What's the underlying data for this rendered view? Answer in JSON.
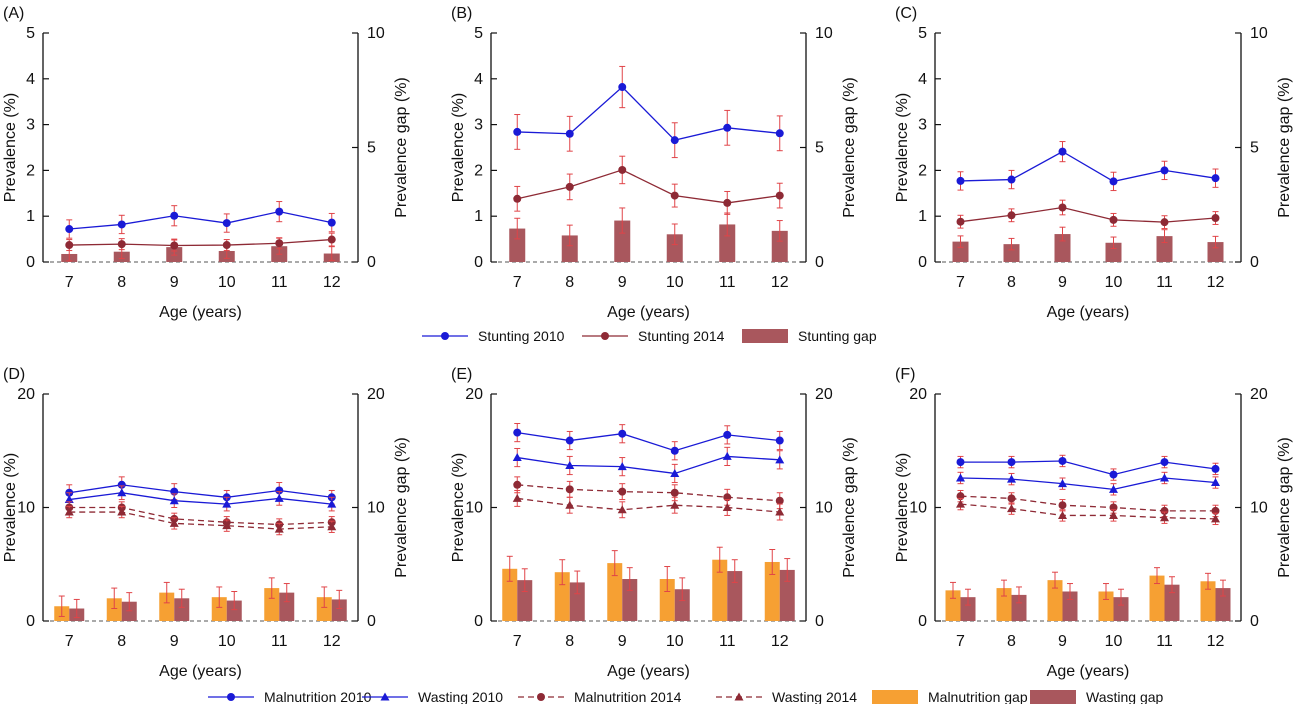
{
  "colors": {
    "blue": "#1a1ad6",
    "red": "#8e2a35",
    "bar_brown": "#a9575d",
    "bar_orange": "#f6a033",
    "err_red": "#e04448",
    "axis": "#111111"
  },
  "chart_data": [
    {
      "panel": "(A)",
      "type": "line+bar",
      "group": "stunting",
      "categories": [
        "7",
        "8",
        "9",
        "10",
        "11",
        "12"
      ],
      "xlabel": "Age (years)",
      "ylabel": "Prevalence (%)",
      "y2label": "Prevalence gap (%)",
      "ylim": [
        0,
        5
      ],
      "yticks": [
        "0",
        "1",
        "2",
        "3",
        "4",
        "5"
      ],
      "y2lim": [
        0,
        10
      ],
      "y2ticks": [
        "0",
        "5",
        "10"
      ],
      "lines": [
        {
          "name": "Stunting 2010",
          "color": "blue",
          "marker": "circle",
          "dash": false,
          "values": [
            0.72,
            0.82,
            1.01,
            0.85,
            1.1,
            0.86
          ],
          "err": [
            0.2,
            0.2,
            0.22,
            0.2,
            0.22,
            0.2
          ]
        },
        {
          "name": "Stunting 2014",
          "color": "red",
          "marker": "circle",
          "dash": false,
          "values": [
            0.37,
            0.39,
            0.36,
            0.37,
            0.41,
            0.49
          ],
          "err": [
            0.12,
            0.12,
            0.12,
            0.12,
            0.12,
            0.14
          ]
        }
      ],
      "bars": [
        {
          "name": "Stunting gap",
          "color": "bar_brown",
          "values": [
            0.35,
            0.45,
            0.65,
            0.48,
            0.69,
            0.37
          ],
          "err": [
            0.3,
            0.3,
            0.35,
            0.32,
            0.35,
            0.3
          ]
        }
      ]
    },
    {
      "panel": "(B)",
      "type": "line+bar",
      "group": "stunting",
      "categories": [
        "7",
        "8",
        "9",
        "10",
        "11",
        "12"
      ],
      "xlabel": "Age (years)",
      "ylabel": "Prevalence (%)",
      "y2label": "Prevalence gap (%)",
      "ylim": [
        0,
        5
      ],
      "yticks": [
        "0",
        "1",
        "2",
        "3",
        "4",
        "5"
      ],
      "y2lim": [
        0,
        10
      ],
      "y2ticks": [
        "0",
        "5",
        "10"
      ],
      "lines": [
        {
          "name": "Stunting 2010",
          "color": "blue",
          "marker": "circle",
          "dash": false,
          "values": [
            2.84,
            2.8,
            3.82,
            2.66,
            2.93,
            2.81
          ],
          "err": [
            0.38,
            0.38,
            0.45,
            0.38,
            0.38,
            0.38
          ]
        },
        {
          "name": "Stunting 2014",
          "color": "red",
          "marker": "circle",
          "dash": false,
          "values": [
            1.38,
            1.64,
            2.01,
            1.45,
            1.29,
            1.45
          ],
          "err": [
            0.27,
            0.28,
            0.3,
            0.25,
            0.25,
            0.27
          ]
        }
      ],
      "bars": [
        {
          "name": "Stunting gap",
          "color": "bar_brown",
          "values": [
            1.46,
            1.16,
            1.81,
            1.21,
            1.64,
            1.36
          ],
          "err": [
            0.45,
            0.45,
            0.55,
            0.45,
            0.5,
            0.45
          ]
        }
      ]
    },
    {
      "panel": "(C)",
      "type": "line+bar",
      "group": "stunting",
      "categories": [
        "7",
        "8",
        "9",
        "10",
        "11",
        "12"
      ],
      "xlabel": "Age (years)",
      "ylabel": "Prevalence (%)",
      "y2label": "Prevalence gap (%)",
      "ylim": [
        0,
        5
      ],
      "yticks": [
        "0",
        "1",
        "2",
        "3",
        "4",
        "5"
      ],
      "y2lim": [
        0,
        10
      ],
      "y2ticks": [
        "0",
        "5",
        "10"
      ],
      "lines": [
        {
          "name": "Stunting 2010",
          "color": "blue",
          "marker": "circle",
          "dash": false,
          "values": [
            1.77,
            1.8,
            2.41,
            1.76,
            2.0,
            1.83
          ],
          "err": [
            0.2,
            0.2,
            0.22,
            0.2,
            0.2,
            0.2
          ]
        },
        {
          "name": "Stunting 2014",
          "color": "red",
          "marker": "circle",
          "dash": false,
          "values": [
            0.88,
            1.02,
            1.19,
            0.92,
            0.87,
            0.96
          ],
          "err": [
            0.14,
            0.14,
            0.16,
            0.14,
            0.14,
            0.14
          ]
        }
      ],
      "bars": [
        {
          "name": "Stunting gap",
          "color": "bar_brown",
          "values": [
            0.89,
            0.78,
            1.22,
            0.84,
            1.13,
            0.87
          ],
          "err": [
            0.25,
            0.25,
            0.3,
            0.25,
            0.28,
            0.25
          ]
        }
      ]
    },
    {
      "panel": "(D)",
      "type": "line+bar",
      "group": "malnutrition",
      "categories": [
        "7",
        "8",
        "9",
        "10",
        "11",
        "12"
      ],
      "xlabel": "Age (years)",
      "ylabel": "Prevalence (%)",
      "y2label": "Prevalence gap (%)",
      "ylim": [
        0,
        20
      ],
      "yticks": [
        "0",
        "10",
        "20"
      ],
      "y2lim": [
        0,
        20
      ],
      "y2ticks": [
        "0",
        "10",
        "20"
      ],
      "lines": [
        {
          "name": "Malnutrition 2010",
          "color": "blue",
          "marker": "circle",
          "dash": false,
          "values": [
            11.3,
            12.0,
            11.4,
            10.9,
            11.5,
            10.9
          ],
          "err": [
            0.7,
            0.7,
            0.7,
            0.6,
            0.7,
            0.6
          ]
        },
        {
          "name": "Wasting 2010",
          "color": "blue",
          "marker": "triangle",
          "dash": false,
          "values": [
            10.7,
            11.3,
            10.6,
            10.3,
            10.8,
            10.3
          ],
          "err": [
            0.6,
            0.6,
            0.6,
            0.6,
            0.6,
            0.6
          ]
        },
        {
          "name": "Malnutrition 2014",
          "color": "red",
          "marker": "circle",
          "dash": true,
          "values": [
            10.0,
            10.0,
            9.0,
            8.7,
            8.5,
            8.7
          ],
          "err": [
            0.5,
            0.5,
            0.5,
            0.5,
            0.5,
            0.5
          ]
        },
        {
          "name": "Wasting 2014",
          "color": "red",
          "marker": "triangle",
          "dash": true,
          "values": [
            9.6,
            9.6,
            8.6,
            8.4,
            8.1,
            8.3
          ],
          "err": [
            0.5,
            0.5,
            0.5,
            0.5,
            0.5,
            0.5
          ]
        }
      ],
      "bars": [
        {
          "name": "Malnutrition gap",
          "color": "bar_orange",
          "values": [
            1.3,
            2.0,
            2.5,
            2.1,
            2.9,
            2.1
          ],
          "err": [
            0.9,
            0.9,
            0.9,
            0.9,
            0.9,
            0.9
          ]
        },
        {
          "name": "Wasting gap",
          "color": "bar_brown",
          "values": [
            1.1,
            1.7,
            2.0,
            1.8,
            2.5,
            1.9
          ],
          "err": [
            0.8,
            0.8,
            0.8,
            0.8,
            0.8,
            0.8
          ]
        }
      ]
    },
    {
      "panel": "(E)",
      "type": "line+bar",
      "group": "malnutrition",
      "categories": [
        "7",
        "8",
        "9",
        "10",
        "11",
        "12"
      ],
      "xlabel": "Age (years)",
      "ylabel": "Prevalence (%)",
      "y2label": "Prevalence gap (%)",
      "ylim": [
        0,
        20
      ],
      "yticks": [
        "0",
        "10",
        "20"
      ],
      "y2lim": [
        0,
        20
      ],
      "y2ticks": [
        "0",
        "10",
        "20"
      ],
      "lines": [
        {
          "name": "Malnutrition 2010",
          "color": "blue",
          "marker": "circle",
          "dash": false,
          "values": [
            16.6,
            15.9,
            16.5,
            15.0,
            16.4,
            15.9
          ],
          "err": [
            0.8,
            0.8,
            0.8,
            0.8,
            0.8,
            0.8
          ]
        },
        {
          "name": "Wasting 2010",
          "color": "blue",
          "marker": "triangle",
          "dash": false,
          "values": [
            14.4,
            13.7,
            13.6,
            13.0,
            14.5,
            14.2
          ],
          "err": [
            0.8,
            0.8,
            0.8,
            0.8,
            0.8,
            0.8
          ]
        },
        {
          "name": "Malnutrition 2014",
          "color": "red",
          "marker": "circle",
          "dash": true,
          "values": [
            12.0,
            11.6,
            11.4,
            11.3,
            10.9,
            10.6
          ],
          "err": [
            0.7,
            0.7,
            0.7,
            0.7,
            0.7,
            0.7
          ]
        },
        {
          "name": "Wasting 2014",
          "color": "red",
          "marker": "triangle",
          "dash": true,
          "values": [
            10.8,
            10.2,
            9.8,
            10.2,
            10.0,
            9.6
          ],
          "err": [
            0.7,
            0.7,
            0.7,
            0.7,
            0.7,
            0.7
          ]
        }
      ],
      "bars": [
        {
          "name": "Malnutrition gap",
          "color": "bar_orange",
          "values": [
            4.6,
            4.3,
            5.1,
            3.7,
            5.4,
            5.2
          ],
          "err": [
            1.1,
            1.1,
            1.1,
            1.1,
            1.1,
            1.1
          ]
        },
        {
          "name": "Wasting gap",
          "color": "bar_brown",
          "values": [
            3.6,
            3.4,
            3.7,
            2.8,
            4.4,
            4.5
          ],
          "err": [
            1.0,
            1.0,
            1.0,
            1.0,
            1.0,
            1.0
          ]
        }
      ]
    },
    {
      "panel": "(F)",
      "type": "line+bar",
      "group": "malnutrition",
      "categories": [
        "7",
        "8",
        "9",
        "10",
        "11",
        "12"
      ],
      "xlabel": "Age (years)",
      "ylabel": "Prevalence (%)",
      "y2label": "Prevalence gap (%)",
      "ylim": [
        0,
        20
      ],
      "yticks": [
        "0",
        "10",
        "20"
      ],
      "y2lim": [
        0,
        20
      ],
      "y2ticks": [
        "0",
        "10",
        "20"
      ],
      "lines": [
        {
          "name": "Malnutrition 2010",
          "color": "blue",
          "marker": "circle",
          "dash": false,
          "values": [
            14.0,
            14.0,
            14.1,
            12.9,
            14.0,
            13.4
          ],
          "err": [
            0.5,
            0.5,
            0.5,
            0.5,
            0.5,
            0.5
          ]
        },
        {
          "name": "Wasting 2010",
          "color": "blue",
          "marker": "triangle",
          "dash": false,
          "values": [
            12.6,
            12.5,
            12.1,
            11.6,
            12.6,
            12.2
          ],
          "err": [
            0.5,
            0.5,
            0.5,
            0.5,
            0.5,
            0.5
          ]
        },
        {
          "name": "Malnutrition 2014",
          "color": "red",
          "marker": "circle",
          "dash": true,
          "values": [
            11.0,
            10.8,
            10.2,
            10.0,
            9.7,
            9.7
          ],
          "err": [
            0.5,
            0.5,
            0.5,
            0.5,
            0.5,
            0.5
          ]
        },
        {
          "name": "Wasting 2014",
          "color": "red",
          "marker": "triangle",
          "dash": true,
          "values": [
            10.3,
            9.9,
            9.3,
            9.3,
            9.1,
            9.0
          ],
          "err": [
            0.5,
            0.5,
            0.5,
            0.5,
            0.5,
            0.5
          ]
        }
      ],
      "bars": [
        {
          "name": "Malnutrition gap",
          "color": "bar_orange",
          "values": [
            2.7,
            2.9,
            3.6,
            2.6,
            4.0,
            3.5
          ],
          "err": [
            0.7,
            0.7,
            0.7,
            0.7,
            0.7,
            0.7
          ]
        },
        {
          "name": "Wasting gap",
          "color": "bar_brown",
          "values": [
            2.1,
            2.3,
            2.6,
            2.1,
            3.2,
            2.9
          ],
          "err": [
            0.7,
            0.7,
            0.7,
            0.7,
            0.7,
            0.7
          ]
        }
      ]
    }
  ],
  "legends": {
    "stunting": [
      {
        "label": "Stunting 2010",
        "kind": "line",
        "color": "blue",
        "marker": "circle",
        "dash": false
      },
      {
        "label": "Stunting 2014",
        "kind": "line",
        "color": "red",
        "marker": "circle",
        "dash": false
      },
      {
        "label": "Stunting gap",
        "kind": "bar",
        "color": "bar_brown"
      }
    ],
    "malnutrition": [
      {
        "label": "Malnutrition 2010",
        "kind": "line",
        "color": "blue",
        "marker": "circle",
        "dash": false
      },
      {
        "label": "Wasting 2010",
        "kind": "line",
        "color": "blue",
        "marker": "triangle",
        "dash": false
      },
      {
        "label": "Malnutrition 2014",
        "kind": "line",
        "color": "red",
        "marker": "circle",
        "dash": true
      },
      {
        "label": "Wasting 2014",
        "kind": "line",
        "color": "red",
        "marker": "triangle",
        "dash": true
      },
      {
        "label": "Malnutrition gap",
        "kind": "bar",
        "color": "bar_orange"
      },
      {
        "label": "Wasting gap",
        "kind": "bar",
        "color": "bar_brown"
      }
    ]
  }
}
